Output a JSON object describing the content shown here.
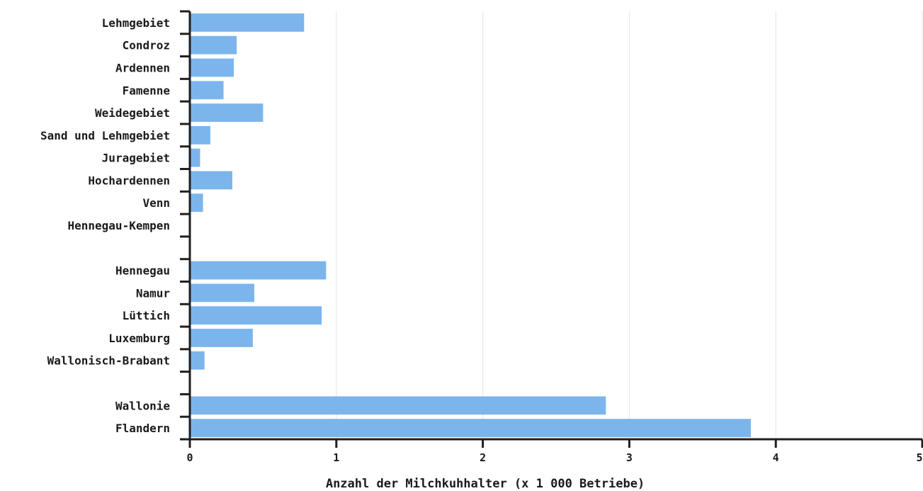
{
  "chart_data": {
    "type": "bar",
    "orientation": "horizontal",
    "categories": [
      "Lehmgebiet",
      "Condroz",
      "Ardennen",
      "Famenne",
      "Weidegebiet",
      "Sand und Lehmgebiet",
      "Juragebiet",
      "Hochardennen",
      "Venn",
      "Hennegau-Kempen",
      "",
      "Hennegau",
      "Namur",
      "Lüttich",
      "Luxemburg",
      "Wallonisch-Brabant",
      "",
      "Wallonie",
      "Flandern"
    ],
    "values": [
      0.78,
      0.32,
      0.3,
      0.23,
      0.5,
      0.14,
      0.07,
      0.29,
      0.09,
      0.005,
      null,
      0.93,
      0.44,
      0.9,
      0.43,
      0.1,
      null,
      2.84,
      3.83
    ],
    "title": "",
    "xlabel": "Anzahl der Milchkuhhalter (x 1 000 Betriebe)",
    "ylabel": "",
    "xlim": [
      0,
      5
    ],
    "xticks": [
      "0",
      "1",
      "2",
      "3",
      "4",
      "5"
    ],
    "grid": "vertical",
    "bar_color": "#7cb5ec"
  }
}
